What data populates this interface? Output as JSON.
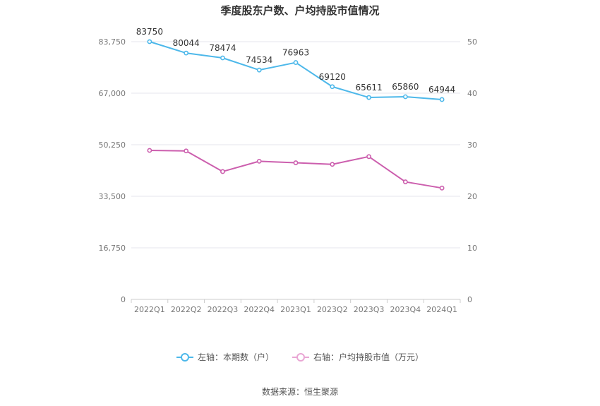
{
  "chart_data": {
    "type": "line",
    "title": "季度股东户数、户均持股市值情况",
    "categories": [
      "2022Q1",
      "2022Q2",
      "2022Q3",
      "2022Q4",
      "2023Q1",
      "2023Q2",
      "2023Q3",
      "2023Q4",
      "2024Q1"
    ],
    "left_axis": {
      "ticks": [
        "0",
        "16,750",
        "33,500",
        "50,250",
        "67,000",
        "83,750"
      ],
      "ylim": [
        0,
        83750
      ]
    },
    "right_axis": {
      "ticks": [
        "0",
        "10",
        "20",
        "30",
        "40",
        "50"
      ],
      "ylim": [
        0,
        50
      ]
    },
    "series": [
      {
        "name": "左轴：本期数（户）",
        "axis": "left",
        "color": "#4db8ea",
        "values": [
          83750,
          80044,
          78474,
          74534,
          76963,
          69120,
          65611,
          65860,
          64944
        ],
        "labels": [
          "83750",
          "80044",
          "78474",
          "74534",
          "76963",
          "69120",
          "65611",
          "65860",
          "64944"
        ]
      },
      {
        "name": "右轴：户均持股市值（万元）",
        "axis": "right",
        "color": "#cc5fae",
        "values": [
          28.9,
          28.8,
          24.8,
          26.8,
          26.5,
          26.2,
          27.7,
          22.8,
          21.6
        ]
      }
    ],
    "grid": true,
    "legend_position": "bottom"
  },
  "source": "数据来源：恒生聚源"
}
